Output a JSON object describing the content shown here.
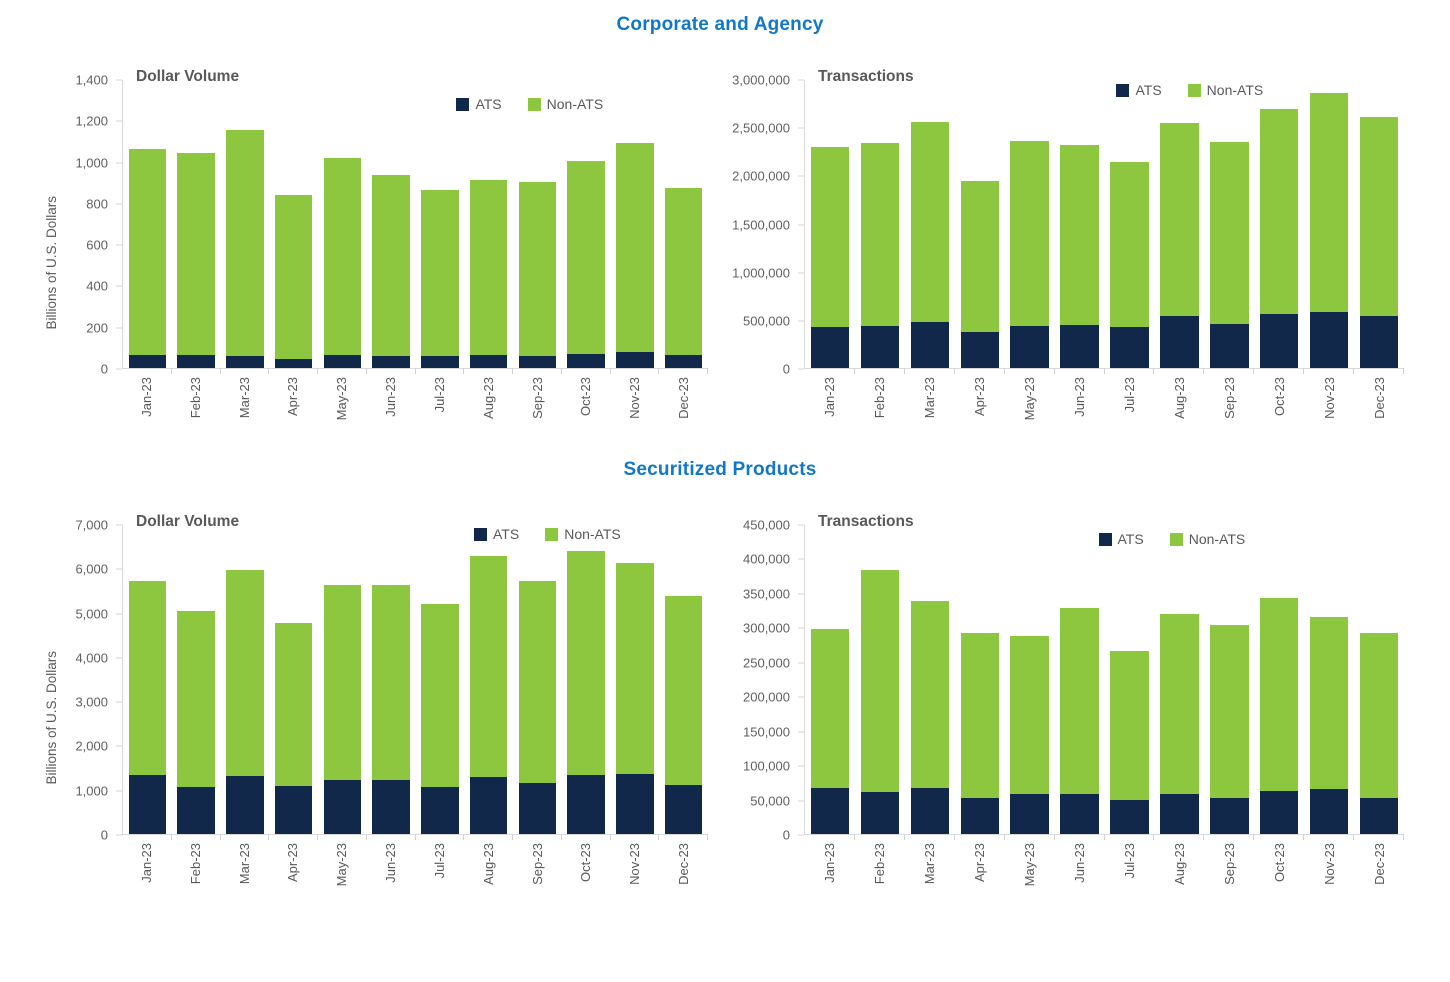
{
  "sections": [
    {
      "title": "Corporate and Agency"
    },
    {
      "title": "Securitized Products"
    }
  ],
  "legend": {
    "ats_label": "ATS",
    "non_ats_label": "Non-ATS"
  },
  "colors": {
    "ats": "#12284B",
    "non_ats": "#8DC63F",
    "section_title": "#1277C8",
    "chart_title": "#595959",
    "axis_text": "#616161",
    "axis_line": "#D9D9D9"
  },
  "chart_data": [
    {
      "type": "bar",
      "stacked": true,
      "section": "Corporate and Agency",
      "title": "Dollar Volume",
      "ylabel": "Billions of U.S. Dollars",
      "xlabel": "",
      "ylim": [
        0,
        1400
      ],
      "ytick_step": 200,
      "grid": false,
      "legend_position": "top-right",
      "categories": [
        "Jan-23",
        "Feb-23",
        "Mar-23",
        "Apr-23",
        "May-23",
        "Jun-23",
        "Jul-23",
        "Aug-23",
        "Sep-23",
        "Oct-23",
        "Nov-23",
        "Dec-23"
      ],
      "series": [
        {
          "name": "ATS",
          "color_key": "ats",
          "values": [
            65,
            65,
            58,
            45,
            64,
            60,
            58,
            63,
            59,
            68,
            79,
            64
          ]
        },
        {
          "name": "Non-ATS",
          "color_key": "non_ats",
          "values": [
            1000,
            980,
            1097,
            795,
            956,
            880,
            807,
            852,
            846,
            937,
            1016,
            811
          ]
        }
      ]
    },
    {
      "type": "bar",
      "stacked": true,
      "section": "Corporate and Agency",
      "title": "Transactions",
      "ylabel": "",
      "xlabel": "",
      "ylim": [
        0,
        3000000
      ],
      "ytick_step": 500000,
      "grid": false,
      "legend_position": "top-right",
      "categories": [
        "Jan-23",
        "Feb-23",
        "Mar-23",
        "Apr-23",
        "May-23",
        "Jun-23",
        "Jul-23",
        "Aug-23",
        "Sep-23",
        "Oct-23",
        "Nov-23",
        "Dec-23"
      ],
      "series": [
        {
          "name": "ATS",
          "color_key": "ats",
          "values": [
            430000,
            440000,
            475000,
            370000,
            440000,
            450000,
            430000,
            540000,
            460000,
            565000,
            580000,
            545000
          ]
        },
        {
          "name": "Non-ATS",
          "color_key": "non_ats",
          "values": [
            1875000,
            1900000,
            2085000,
            1580000,
            1930000,
            1870000,
            1720000,
            2010000,
            1890000,
            2135000,
            2280000,
            2075000
          ]
        }
      ]
    },
    {
      "type": "bar",
      "stacked": true,
      "section": "Securitized Products",
      "title": "Dollar Volume",
      "ylabel": "Billions of U.S. Dollars",
      "xlabel": "",
      "ylim": [
        0,
        7000
      ],
      "ytick_step": 1000,
      "grid": false,
      "legend_position": "top-right",
      "categories": [
        "Jan-23",
        "Feb-23",
        "Mar-23",
        "Apr-23",
        "May-23",
        "Jun-23",
        "Jul-23",
        "Aug-23",
        "Sep-23",
        "Oct-23",
        "Nov-23",
        "Dec-23"
      ],
      "series": [
        {
          "name": "ATS",
          "color_key": "ats",
          "values": [
            1330,
            1060,
            1320,
            1090,
            1230,
            1230,
            1075,
            1300,
            1150,
            1340,
            1370,
            1100
          ]
        },
        {
          "name": "Non-ATS",
          "color_key": "non_ats",
          "values": [
            4400,
            3990,
            4660,
            3680,
            4420,
            4420,
            4145,
            5000,
            4580,
            5080,
            4760,
            4290
          ]
        }
      ]
    },
    {
      "type": "bar",
      "stacked": true,
      "section": "Securitized Products",
      "title": "Transactions",
      "ylabel": "",
      "xlabel": "",
      "ylim": [
        0,
        450000
      ],
      "ytick_step": 50000,
      "grid": false,
      "legend_position": "top-right",
      "categories": [
        "Jan-23",
        "Feb-23",
        "Mar-23",
        "Apr-23",
        "May-23",
        "Jun-23",
        "Jul-23",
        "Aug-23",
        "Sep-23",
        "Oct-23",
        "Nov-23",
        "Dec-23"
      ],
      "series": [
        {
          "name": "ATS",
          "color_key": "ats",
          "values": [
            67000,
            61000,
            67000,
            53000,
            59000,
            59000,
            49000,
            59000,
            52000,
            63000,
            66000,
            53000
          ]
        },
        {
          "name": "Non-ATS",
          "color_key": "non_ats",
          "values": [
            231000,
            323000,
            273000,
            240000,
            230000,
            270000,
            218000,
            261000,
            252000,
            280000,
            250000,
            240000
          ]
        }
      ]
    }
  ]
}
